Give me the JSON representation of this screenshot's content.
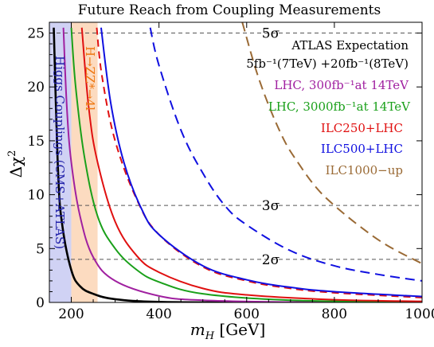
{
  "chart_data": {
    "type": "line",
    "title": "Future Reach from Coupling Measurements",
    "xlabel_main": "m",
    "xlabel_sub": "H",
    "xlabel_unit": " [GeV]",
    "ylabel_main": "Δχ",
    "ylabel_sup": "2",
    "xlim": [
      150,
      1000
    ],
    "ylim": [
      0,
      26
    ],
    "xticks": [
      200,
      400,
      600,
      800,
      1000
    ],
    "yticks": [
      0,
      5,
      10,
      15,
      20,
      25
    ],
    "sigma_lines": [
      {
        "y": 25,
        "label": "5σ"
      },
      {
        "y": 9,
        "label": "3σ"
      },
      {
        "y": 4,
        "label": "2σ"
      }
    ],
    "bands": [
      {
        "name": "Higgs Couplings (CMS+ATLAS)",
        "x": [
          150,
          200
        ],
        "color": "#c8caf2"
      },
      {
        "name": "H→ZZ*→4l",
        "x": [
          200,
          260
        ],
        "color": "#fbd5b5"
      }
    ],
    "band_labels": {
      "higgs": "Higgs Couplings (CMS+ATLAS)",
      "hzz": "H→ZZ*→4l"
    },
    "series": [
      {
        "name": "ATLAS Expectation",
        "sub": "5fb⁻¹(7TeV) +20fb⁻¹(8TeV)",
        "color": "#000000",
        "dash": "",
        "x0": 160,
        "y0": 25.5,
        "points": [
          [
            160,
            25.5
          ],
          [
            170,
            12
          ],
          [
            180,
            7
          ],
          [
            200,
            3
          ],
          [
            220,
            1.5
          ],
          [
            250,
            0.8
          ],
          [
            300,
            0.3
          ],
          [
            400,
            0.05
          ],
          [
            600,
            0.0
          ],
          [
            1000,
            0.0
          ]
        ]
      },
      {
        "name": "LHC, 300fb⁻¹at 14TeV",
        "color": "#a020a0",
        "dash": "",
        "points": [
          [
            182,
            25.5
          ],
          [
            190,
            18
          ],
          [
            200,
            13
          ],
          [
            220,
            8
          ],
          [
            250,
            4.2
          ],
          [
            300,
            2
          ],
          [
            400,
            0.6
          ],
          [
            500,
            0.2
          ],
          [
            700,
            0.03
          ],
          [
            1000,
            0.0
          ]
        ]
      },
      {
        "name": "LHC, 3000fb⁻¹at 14TeV",
        "color": "#1aa01a",
        "dash": "",
        "points": [
          [
            200,
            25.5
          ],
          [
            210,
            20
          ],
          [
            230,
            13.5
          ],
          [
            260,
            8
          ],
          [
            300,
            5
          ],
          [
            350,
            3
          ],
          [
            400,
            1.9
          ],
          [
            500,
            0.8
          ],
          [
            700,
            0.2
          ],
          [
            1000,
            0.03
          ]
        ]
      },
      {
        "name": "ILC250+LHC",
        "color": "#e01010",
        "dash": "",
        "points": [
          [
            224,
            25.5
          ],
          [
            240,
            18
          ],
          [
            260,
            13
          ],
          [
            300,
            7.5
          ],
          [
            350,
            4.3
          ],
          [
            400,
            2.8
          ],
          [
            500,
            1.3
          ],
          [
            600,
            0.7
          ],
          [
            800,
            0.25
          ],
          [
            1000,
            0.1
          ]
        ]
      },
      {
        "name": "ILC250+LHC (dashed)",
        "color": "#e01010",
        "dash": "9,6",
        "points": [
          [
            258,
            25.5
          ],
          [
            270,
            21
          ],
          [
            300,
            15
          ],
          [
            350,
            9.5
          ],
          [
            400,
            6.3
          ],
          [
            500,
            3.3
          ],
          [
            600,
            2
          ],
          [
            700,
            1.3
          ],
          [
            800,
            0.9
          ],
          [
            1000,
            0.45
          ]
        ]
      },
      {
        "name": "ILC500+LHC",
        "color": "#1010e0",
        "dash": "",
        "points": [
          [
            268,
            25.5
          ],
          [
            290,
            18.5
          ],
          [
            320,
            13
          ],
          [
            360,
            8.7
          ],
          [
            400,
            6.3
          ],
          [
            500,
            3.4
          ],
          [
            600,
            2.1
          ],
          [
            700,
            1.4
          ],
          [
            800,
            1.0
          ],
          [
            1000,
            0.55
          ]
        ]
      },
      {
        "name": "ILC500+LHC (dashed)",
        "color": "#1010e0",
        "dash": "12,7",
        "points": [
          [
            380,
            25.5
          ],
          [
            400,
            22
          ],
          [
            450,
            16
          ],
          [
            500,
            12
          ],
          [
            550,
            9
          ],
          [
            600,
            7.2
          ],
          [
            700,
            4.8
          ],
          [
            800,
            3.4
          ],
          [
            900,
            2.6
          ],
          [
            1000,
            2.0
          ]
        ]
      },
      {
        "name": "ILC1000−up",
        "color": "#9a6a35",
        "dash": "12,7",
        "points": [
          [
            590,
            26
          ],
          [
            630,
            20.5
          ],
          [
            680,
            15.5
          ],
          [
            720,
            12.8
          ],
          [
            760,
            10.6
          ],
          [
            800,
            9
          ],
          [
            860,
            7
          ],
          [
            920,
            5.3
          ],
          [
            1000,
            3.6
          ]
        ]
      }
    ],
    "legend": [
      {
        "text": "ATLAS Expectation",
        "color": "#000000"
      },
      {
        "text": "5fb⁻¹(7TeV) +20fb⁻¹(8TeV)",
        "color": "#000000"
      },
      {
        "text": "LHC, 300fb⁻¹at 14TeV",
        "color": "#a020a0"
      },
      {
        "text": "LHC, 3000fb⁻¹at 14TeV",
        "color": "#1aa01a"
      },
      {
        "text": "ILC250+LHC",
        "color": "#e01010"
      },
      {
        "text": "ILC500+LHC",
        "color": "#1010e0"
      },
      {
        "text": "ILC1000−up",
        "color": "#9a6a35"
      }
    ],
    "grid": false,
    "legend_position": "right"
  }
}
